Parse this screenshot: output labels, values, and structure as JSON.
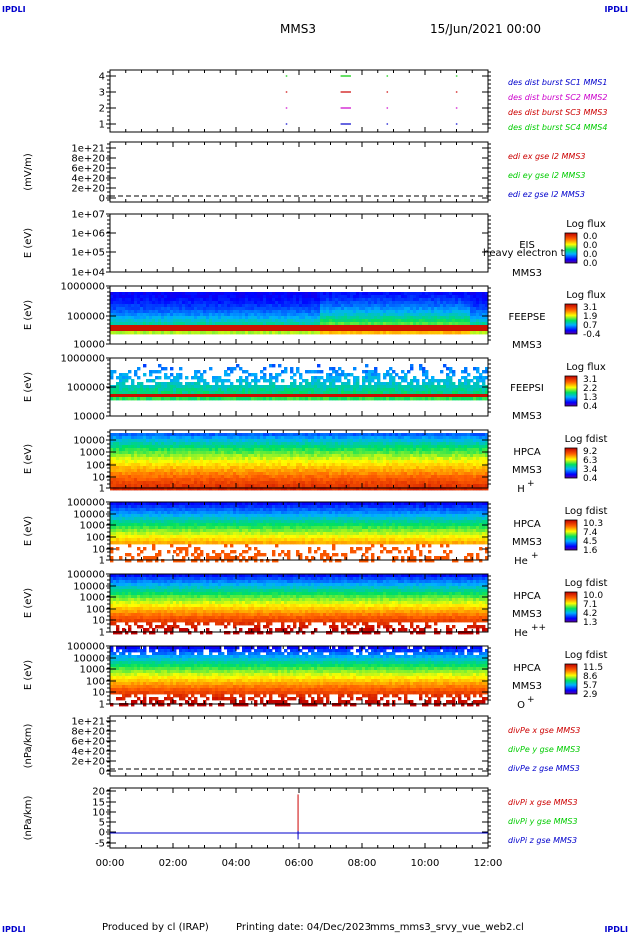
{
  "header": {
    "corner_tl": "IPDLI",
    "corner_tr": "IPDLI",
    "corner_bl": "IPDLI",
    "corner_br": "IPDLI",
    "spacecraft": "MMS3",
    "datetime": "15/Jun/2021 00:00"
  },
  "footer": {
    "produced_by": "Produced by cl (IRAP)",
    "printing_date": "Printing date: 04/Dec/2023",
    "script_name": "mms_mms3_srvy_vue_web2.cl"
  },
  "chart_data": [
    {
      "id": "burst",
      "type": "line",
      "yticks": [
        "4",
        "3",
        "2",
        "1"
      ],
      "series": [
        {
          "name": "des dist burst SC1 MMS1",
          "color": "#0000cc",
          "level": 1,
          "segments": [
            [
              5.58,
              5.6
            ],
            [
              7.32,
              7.65
            ],
            [
              8.78,
              8.8
            ],
            [
              10.98,
              11.0
            ]
          ]
        },
        {
          "name": "des dist burst SC2 MMS2",
          "color": "#cc00cc",
          "level": 2,
          "segments": [
            [
              5.58,
              5.6
            ],
            [
              7.32,
              7.65
            ],
            [
              8.78,
              8.8
            ],
            [
              10.98,
              11.0
            ]
          ]
        },
        {
          "name": "des dist burst SC3 MMS3",
          "color": "#cc0000",
          "level": 3,
          "segments": [
            [
              5.58,
              5.6
            ],
            [
              7.32,
              7.65
            ],
            [
              8.78,
              8.8
            ],
            [
              10.98,
              11.0
            ]
          ]
        },
        {
          "name": "des dist burst SC4 MMS4",
          "color": "#00cc00",
          "level": 4,
          "segments": [
            [
              5.58,
              5.6
            ],
            [
              7.32,
              7.65
            ],
            [
              8.78,
              8.8
            ],
            [
              10.98,
              11.0
            ]
          ]
        }
      ]
    },
    {
      "id": "edi",
      "type": "line",
      "ylabel": "(mV/m)",
      "yticks": [
        "1e+21",
        "8e+20",
        "6e+20",
        "4e+20",
        "2e+20",
        "0"
      ],
      "series": [
        {
          "name": "edi ex gse l2 MMS3",
          "color": "#cc0000"
        },
        {
          "name": "edi ey gse l2 MMS3",
          "color": "#00cc00"
        },
        {
          "name": "edi ez gse l2 MMS3",
          "color": "#0000cc"
        }
      ]
    },
    {
      "id": "eis",
      "type": "heatmap",
      "ylabel": "E (eV)",
      "yticks": [
        "1e+07",
        "1e+06",
        "1e+05",
        "1e+04"
      ],
      "instrument": "EIS",
      "overlay": "heavy electron to",
      "spacecraft": "MMS3",
      "cbar_title": "Log flux",
      "cbar_values": [
        "0.0",
        "0.0",
        "0.0",
        "0.0"
      ]
    },
    {
      "id": "feepse",
      "type": "heatmap",
      "ylabel": "E (eV)",
      "yticks": [
        "1000000",
        "100000",
        "10000"
      ],
      "instrument": "FEEPSE",
      "spacecraft": "MMS3",
      "cbar_title": "Log flux",
      "cbar_values": [
        "3.1",
        "1.9",
        "0.7",
        "-0.4"
      ]
    },
    {
      "id": "feepsi",
      "type": "heatmap",
      "ylabel": "E (eV)",
      "yticks": [
        "1000000",
        "100000",
        "10000"
      ],
      "instrument": "FEEPSI",
      "spacecraft": "MMS3",
      "cbar_title": "Log flux",
      "cbar_values": [
        "3.1",
        "2.2",
        "1.3",
        "0.4"
      ]
    },
    {
      "id": "hpca_h",
      "type": "heatmap",
      "ylabel": "E (eV)",
      "yticks": [
        "10000",
        "1000",
        "100",
        "10",
        "1"
      ],
      "instrument": "HPCA",
      "spacecraft": "MMS3",
      "species": "H",
      "species_sup": "+",
      "cbar_title": "Log fdist",
      "cbar_values": [
        "9.2",
        "6.3",
        "3.4",
        "0.4"
      ]
    },
    {
      "id": "hpca_he1",
      "type": "heatmap",
      "ylabel": "E (eV)",
      "yticks": [
        "100000",
        "10000",
        "1000",
        "100",
        "10",
        "1"
      ],
      "instrument": "HPCA",
      "spacecraft": "MMS3",
      "species": "He",
      "species_sup": "+",
      "cbar_title": "Log fdist",
      "cbar_values": [
        "10.3",
        "7.4",
        "4.5",
        "1.6"
      ]
    },
    {
      "id": "hpca_he2",
      "type": "heatmap",
      "ylabel": "E (eV)",
      "yticks": [
        "100000",
        "10000",
        "1000",
        "100",
        "10",
        "1"
      ],
      "instrument": "HPCA",
      "spacecraft": "MMS3",
      "species": "He",
      "species_sup": "++",
      "cbar_title": "Log fdist",
      "cbar_values": [
        "10.0",
        "7.1",
        "4.2",
        "1.3"
      ]
    },
    {
      "id": "hpca_o",
      "type": "heatmap",
      "ylabel": "E (eV)",
      "yticks": [
        "100000",
        "10000",
        "1000",
        "100",
        "10",
        "1"
      ],
      "instrument": "HPCA",
      "spacecraft": "MMS3",
      "species": "O",
      "species_sup": "+",
      "cbar_title": "Log fdist",
      "cbar_values": [
        "11.5",
        "8.6",
        "5.7",
        "2.9"
      ]
    },
    {
      "id": "divpe",
      "type": "line",
      "ylabel": "(nPa/km)",
      "yticks": [
        "1e+21",
        "8e+20",
        "6e+20",
        "4e+20",
        "2e+20",
        "0"
      ],
      "series": [
        {
          "name": "divPe x gse MMS3",
          "color": "#cc0000"
        },
        {
          "name": "divPe y gse MMS3",
          "color": "#00cc00"
        },
        {
          "name": "divPe z gse MMS3",
          "color": "#0000cc"
        }
      ]
    },
    {
      "id": "divpi",
      "type": "line",
      "ylabel": "(nPa/km)",
      "yticks": [
        "20",
        "15",
        "10",
        "5",
        "0",
        "-5"
      ],
      "ylim": [
        -7,
        21
      ],
      "series": [
        {
          "name": "divPi x gse MMS3",
          "color": "#cc0000",
          "spike": {
            "x": 5.97,
            "ymin": -1,
            "ymax": 18
          }
        },
        {
          "name": "divPi y gse MMS3",
          "color": "#00cc00"
        },
        {
          "name": "divPi z gse MMS3",
          "color": "#0000cc",
          "baseline": 0,
          "spike": {
            "x": 5.97,
            "ymin": -3,
            "ymax": 1
          }
        }
      ]
    }
  ],
  "xaxis": {
    "range_hours": [
      0,
      12
    ],
    "ticks": [
      "00:00",
      "02:00",
      "04:00",
      "06:00",
      "08:00",
      "10:00",
      "12:00"
    ]
  },
  "colors": {
    "series_red": "#cc0000",
    "series_green": "#00cc00",
    "series_blue": "#0000cc",
    "series_magenta": "#cc00cc",
    "corner_blue": "#0000cc"
  }
}
